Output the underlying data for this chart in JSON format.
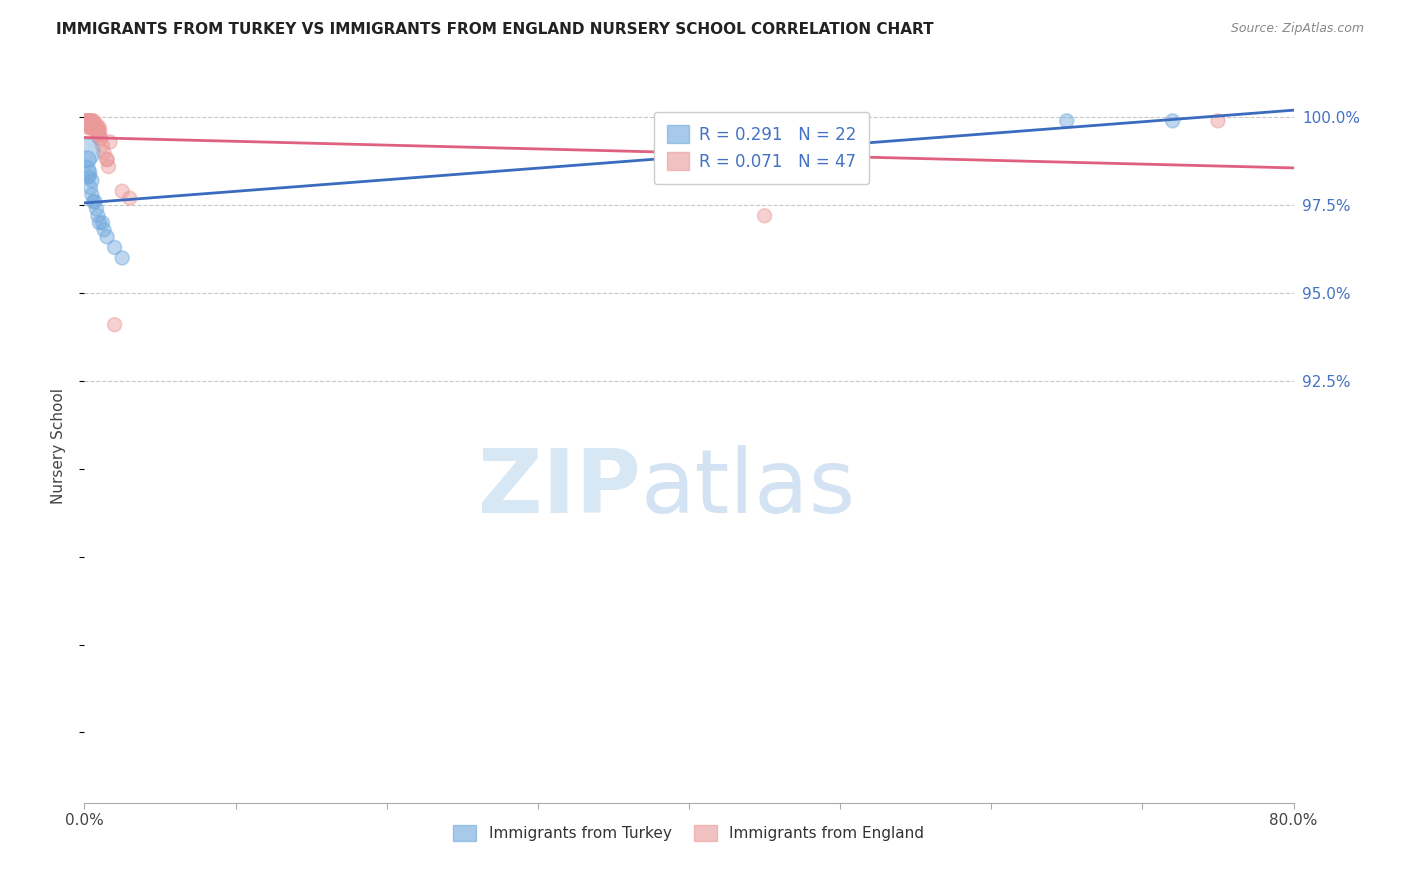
{
  "title": "IMMIGRANTS FROM TURKEY VS IMMIGRANTS FROM ENGLAND NURSERY SCHOOL CORRELATION CHART",
  "source": "Source: ZipAtlas.com",
  "ylabel": "Nursery School",
  "xmin": 0.0,
  "xmax": 0.8,
  "ymin": 0.805,
  "ymax": 1.008,
  "right_yticks": [
    1.0,
    0.975,
    0.95,
    0.925
  ],
  "right_ytick_labels": [
    "100.0%",
    "97.5%",
    "95.0%",
    "92.5%"
  ],
  "turkey_color": "#6fa8dc",
  "england_color": "#ea9999",
  "turkey_line_color": "#3a6bbf",
  "england_line_color": "#e06080",
  "turkey_R": 0.291,
  "turkey_N": 22,
  "england_R": 0.071,
  "england_N": 47,
  "turkey_x": [
    0.001,
    0.001,
    0.002,
    0.003,
    0.003,
    0.004,
    0.005,
    0.005,
    0.006,
    0.007,
    0.008,
    0.009,
    0.01,
    0.012,
    0.013,
    0.015,
    0.02,
    0.025,
    0.65,
    0.72
  ],
  "turkey_y": [
    0.99,
    0.985,
    0.988,
    0.984,
    0.983,
    0.98,
    0.982,
    0.978,
    0.976,
    0.976,
    0.974,
    0.972,
    0.97,
    0.97,
    0.968,
    0.966,
    0.963,
    0.96,
    0.999,
    0.999
  ],
  "turkey_sizes": [
    400,
    200,
    150,
    130,
    100,
    100,
    100,
    100,
    100,
    100,
    100,
    100,
    100,
    100,
    100,
    100,
    100,
    100,
    100,
    100
  ],
  "england_x": [
    0.001,
    0.001,
    0.001,
    0.002,
    0.002,
    0.002,
    0.002,
    0.003,
    0.003,
    0.003,
    0.003,
    0.004,
    0.004,
    0.004,
    0.004,
    0.005,
    0.005,
    0.005,
    0.005,
    0.006,
    0.006,
    0.006,
    0.007,
    0.007,
    0.007,
    0.008,
    0.008,
    0.008,
    0.009,
    0.009,
    0.009,
    0.01,
    0.01,
    0.01,
    0.01,
    0.011,
    0.012,
    0.013,
    0.015,
    0.015,
    0.016,
    0.017,
    0.02,
    0.025,
    0.03,
    0.45,
    0.75
  ],
  "england_y": [
    0.999,
    0.999,
    0.998,
    0.999,
    0.999,
    0.998,
    0.998,
    0.999,
    0.998,
    0.998,
    0.997,
    0.999,
    0.998,
    0.998,
    0.997,
    0.999,
    0.999,
    0.998,
    0.997,
    0.999,
    0.998,
    0.997,
    0.998,
    0.997,
    0.997,
    0.998,
    0.997,
    0.996,
    0.997,
    0.996,
    0.995,
    0.997,
    0.996,
    0.995,
    0.994,
    0.994,
    0.992,
    0.99,
    0.988,
    0.988,
    0.986,
    0.993,
    0.941,
    0.979,
    0.977,
    0.972,
    0.999
  ],
  "england_sizes": [
    100,
    100,
    100,
    100,
    100,
    100,
    100,
    100,
    100,
    100,
    100,
    100,
    100,
    100,
    100,
    100,
    100,
    100,
    100,
    100,
    100,
    100,
    100,
    100,
    100,
    100,
    100,
    100,
    100,
    100,
    100,
    100,
    100,
    100,
    100,
    100,
    100,
    100,
    100,
    100,
    100,
    100,
    100,
    100,
    100,
    100,
    100
  ],
  "legend_label_turkey": "R = 0.291   N = 22",
  "legend_label_england": "R = 0.071   N = 47",
  "bottom_legend_turkey": "Immigrants from Turkey",
  "bottom_legend_england": "Immigrants from England",
  "watermark_zip": "ZIP",
  "watermark_atlas": "atlas",
  "background_color": "#ffffff",
  "grid_color": "#c8c8c8",
  "legend_text_color": "#4472c4",
  "right_axis_color": "#4472c4",
  "title_color": "#222222",
  "axis_label_color": "#444444"
}
